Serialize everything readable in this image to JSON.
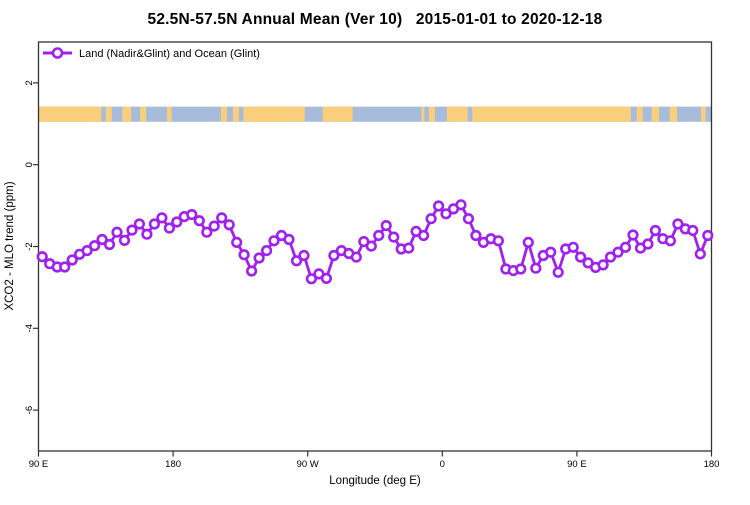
{
  "title": "52.5N-57.5N Annual Mean (Ver 10)   2015-01-01 to 2020-12-18",
  "chart_data": {
    "type": "line",
    "title": "52.5N-57.5N Annual Mean (Ver 10)   2015-01-01 to 2020-12-18",
    "xlabel": "Longitude (deg E)",
    "ylabel": "XCO2 - MLO trend (ppm)",
    "legend": [
      {
        "label": "Land (Nadir&Glint) and Ocean (Glint)",
        "marker": "open-circle",
        "color": "#a020f0"
      }
    ],
    "legend_position": "top-left",
    "grid": false,
    "xlim": [
      90,
      540
    ],
    "ylim": [
      -7,
      3
    ],
    "x_ticks": [
      {
        "value": 90,
        "label": "90 E"
      },
      {
        "value": 180,
        "label": "180"
      },
      {
        "value": 270,
        "label": "90 W"
      },
      {
        "value": 360,
        "label": "0"
      },
      {
        "value": 450,
        "label": "90 E"
      },
      {
        "value": 540,
        "label": "180"
      }
    ],
    "y_ticks": [
      {
        "value": 2,
        "label": "2"
      },
      {
        "value": 0,
        "label": "0"
      },
      {
        "value": -2,
        "label": "-2"
      },
      {
        "value": -4,
        "label": "-4"
      },
      {
        "value": -6,
        "label": "-6"
      }
    ],
    "colors": {
      "line": "#a020f0",
      "marker_fill": "#ffffff",
      "land": "#f9cf7c",
      "ocean": "#a6bcda",
      "axis": "#333333"
    },
    "series": [
      {
        "name": "Land (Nadir&Glint) and Ocean (Glint)",
        "x_start": 92.5,
        "x_step": 5,
        "values": [
          -2.25,
          -2.42,
          -2.5,
          -2.5,
          -2.33,
          -2.19,
          -2.1,
          -1.98,
          -1.83,
          -1.95,
          -1.65,
          -1.85,
          -1.6,
          -1.45,
          -1.7,
          -1.45,
          -1.3,
          -1.55,
          -1.4,
          -1.27,
          -1.22,
          -1.37,
          -1.65,
          -1.5,
          -1.3,
          -1.47,
          -1.9,
          -2.2,
          -2.6,
          -2.28,
          -2.1,
          -1.86,
          -1.73,
          -1.83,
          -2.35,
          -2.22,
          -2.79,
          -2.67,
          -2.78,
          -2.22,
          -2.1,
          -2.17,
          -2.26,
          -1.88,
          -1.99,
          -1.73,
          -1.49,
          -1.77,
          -2.06,
          -2.04,
          -1.63,
          -1.73,
          -1.32,
          -1.01,
          -1.2,
          -1.08,
          -0.98,
          -1.32,
          -1.73,
          -1.9,
          -1.81,
          -1.86,
          -2.55,
          -2.59,
          -2.55,
          -1.9,
          -2.53,
          -2.22,
          -2.14,
          -2.63,
          -2.06,
          -2.02,
          -2.26,
          -2.4,
          -2.51,
          -2.45,
          -2.26,
          -2.14,
          -2.02,
          -1.72,
          -2.04,
          -1.94,
          -1.61,
          -1.81,
          -1.86,
          -1.45,
          -1.57,
          -1.61,
          -2.18,
          -1.73
        ]
      }
    ],
    "land_ocean_band": {
      "y_range": [
        1.05,
        1.42
      ],
      "base": "ocean",
      "land_segments": [
        [
          90,
          132
        ],
        [
          135,
          139
        ],
        [
          146,
          152
        ],
        [
          158,
          162
        ],
        [
          176,
          179
        ],
        [
          212,
          216
        ],
        [
          220,
          224
        ],
        [
          227,
          268
        ],
        [
          280,
          300
        ],
        [
          346,
          348
        ],
        [
          351,
          355
        ],
        [
          363,
          377
        ],
        [
          380,
          486
        ],
        [
          490,
          494
        ],
        [
          500,
          505
        ],
        [
          512,
          517
        ],
        [
          533,
          536
        ]
      ]
    }
  }
}
